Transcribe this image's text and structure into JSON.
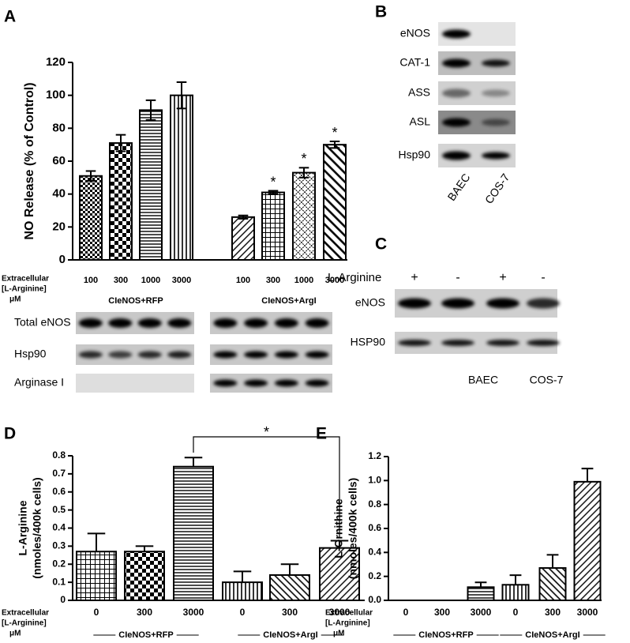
{
  "panel_labels": [
    "A",
    "B",
    "C",
    "D",
    "E"
  ],
  "chart_data": [
    {
      "type": "bar",
      "ylabel": "NO Release (% of  Control)",
      "xlabel": [
        "Extracellular",
        "[L-Arginine]",
        "μM"
      ],
      "categories": [
        "100",
        "300",
        "1000",
        "3000",
        "100",
        "300",
        "1000",
        "3000"
      ],
      "group_names": [
        "CIeNOS+RFP",
        "CIeNOS+ArgI"
      ],
      "values": [
        51,
        71,
        91,
        100,
        26,
        41,
        53,
        70
      ],
      "errors": [
        3,
        5,
        6,
        8,
        1,
        1,
        3,
        2
      ],
      "significance": [
        null,
        null,
        null,
        null,
        null,
        "*",
        "*",
        "*"
      ],
      "ylim": [
        0,
        120
      ],
      "yticks": [
        0,
        20,
        40,
        60,
        80,
        100,
        120
      ]
    },
    {
      "type": "bar",
      "ylabel": [
        "L-Arginine",
        "(nmoles/400k cells)"
      ],
      "xlabel": [
        "Extracellular",
        "[L-Arginine]",
        "μM"
      ],
      "categories": [
        "0",
        "300",
        "3000",
        "0",
        "300",
        "3000"
      ],
      "group_names": [
        "CIeNOS+RFP",
        "CIeNOS+ArgI"
      ],
      "values": [
        0.27,
        0.27,
        0.74,
        0.1,
        0.14,
        0.29
      ],
      "errors": [
        0.1,
        0.03,
        0.05,
        0.06,
        0.06,
        0.04
      ],
      "bracket_label": "*",
      "ylim": [
        0,
        0.8
      ],
      "yticks": [
        0,
        0.1,
        0.2,
        0.3,
        0.4,
        0.5,
        0.6,
        0.7,
        0.8
      ]
    },
    {
      "type": "bar",
      "ylabel": [
        "L-Ornithine",
        "(nmoles/400k cells)"
      ],
      "xlabel": [
        "Extracellular",
        "[L-Arginine]",
        "μM"
      ],
      "categories": [
        "0",
        "300",
        "3000",
        "0",
        "300",
        "3000"
      ],
      "group_names": [
        "CIeNOS+RFP",
        "CIeNOS+ArgI"
      ],
      "values": [
        0,
        0,
        0.11,
        0.13,
        0.27,
        0.99
      ],
      "errors": [
        0,
        0,
        0.04,
        0.08,
        0.11,
        0.11
      ],
      "ylim": [
        0,
        1.2
      ],
      "yticks": [
        {
          "value": 0,
          "label": "0.0"
        },
        0.2,
        0.4,
        0.6,
        0.8,
        {
          "value": 1,
          "label": "1.0"
        },
        1.2
      ]
    }
  ],
  "blot_a": {
    "rows": [
      "Total eNOS",
      "Hsp90",
      "Arginase I"
    ]
  },
  "blot_b": {
    "rows": [
      "eNOS",
      "CAT-1",
      "ASS",
      "ASL",
      "Hsp90"
    ],
    "lanes": [
      "BAEC",
      "COS-7"
    ]
  },
  "blot_c": {
    "treatment": "L-Arginine",
    "signs": [
      "+",
      "-",
      "+",
      "-"
    ],
    "rows": [
      "eNOS",
      "HSP90"
    ],
    "groups": [
      "BAEC",
      "COS-7"
    ]
  }
}
